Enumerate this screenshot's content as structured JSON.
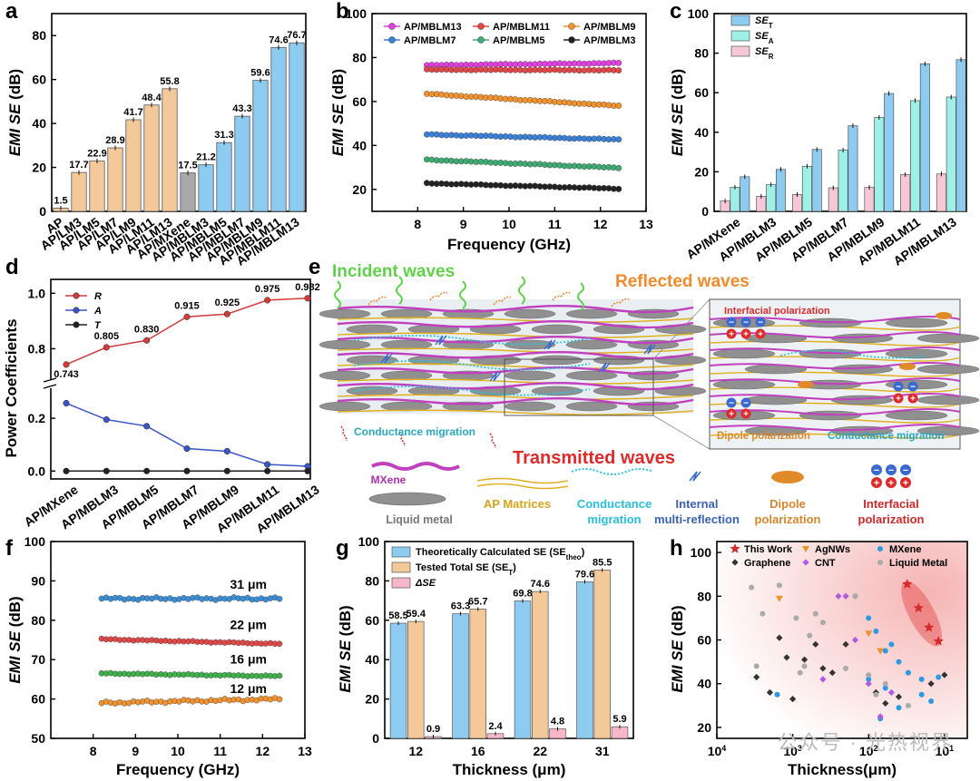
{
  "panels": {
    "a": {
      "letter": "a"
    },
    "b": {
      "letter": "b"
    },
    "c": {
      "letter": "c"
    },
    "d": {
      "letter": "d"
    },
    "e": {
      "letter": "e"
    },
    "f": {
      "letter": "f"
    },
    "g": {
      "letter": "g"
    },
    "h": {
      "letter": "h"
    }
  },
  "chart_data": [
    {
      "panel": "a",
      "type": "bar",
      "ylabel": "EMI SE (dB)",
      "ylim": [
        0,
        90
      ],
      "yticks": [
        0,
        20,
        40,
        60,
        80
      ],
      "categories": [
        "AP",
        "AP/LM3",
        "AP/LM5",
        "AP/LM7",
        "AP/LM9",
        "AP/LM11",
        "AP/LM13",
        "AP/MXene",
        "AP/MBLM3",
        "AP/MBLM5",
        "AP/MBLM7",
        "AP/MBLM9",
        "AP/MBLM11",
        "AP/MBLM13"
      ],
      "values": [
        1.5,
        17.7,
        22.9,
        28.9,
        41.7,
        48.4,
        55.8,
        17.5,
        21.2,
        31.3,
        43.3,
        59.6,
        74.6,
        76.7
      ],
      "value_labels": [
        "1.5",
        "17.7",
        "22.9",
        "28.9",
        "41.7",
        "48.4",
        "55.8",
        "17.5",
        "21.2",
        "31.3",
        "43.3",
        "59.6",
        "74.6",
        "76.7"
      ],
      "colors": {
        "lm": "#f3c99a",
        "mxene": "#a8a8a8",
        "mblm": "#8ecbf0"
      }
    },
    {
      "panel": "b",
      "type": "line",
      "xlabel": "Frequency (GHz)",
      "ylabel": "EMI SE (dB)",
      "xlim": [
        7,
        13
      ],
      "ylim": [
        10,
        100
      ],
      "xticks": [
        8,
        9,
        10,
        11,
        12,
        13
      ],
      "yticks": [
        20,
        40,
        60,
        80,
        100
      ],
      "x_range": [
        8.2,
        12.4
      ],
      "series": [
        {
          "name": "AP/MBLM13",
          "start": 76.5,
          "end": 77.5,
          "color": "#e040e0"
        },
        {
          "name": "AP/MBLM11",
          "start": 74.5,
          "end": 74.2,
          "color": "#e04848"
        },
        {
          "name": "AP/MBLM9",
          "start": 63.5,
          "end": 58.0,
          "color": "#f0922e"
        },
        {
          "name": "AP/MBLM7",
          "start": 45.0,
          "end": 42.7,
          "color": "#3b7fd6"
        },
        {
          "name": "AP/MBLM5",
          "start": 33.5,
          "end": 29.8,
          "color": "#3faa72"
        },
        {
          "name": "AP/MBLM3",
          "start": 22.8,
          "end": 20.3,
          "color": "#222222"
        }
      ]
    },
    {
      "panel": "c",
      "type": "bar",
      "ylabel": "EMI SE (dB)",
      "ylim": [
        0,
        100
      ],
      "yticks": [
        0,
        20,
        40,
        60,
        80,
        100
      ],
      "categories": [
        "AP/MXene",
        "AP/MBLM3",
        "AP/MBLM5",
        "AP/MBLM7",
        "AP/MBLM9",
        "AP/MBLM11",
        "AP/MBLM13"
      ],
      "series": [
        {
          "name": "SE",
          "sub": "T",
          "values": [
            17.5,
            21.2,
            31.3,
            43.3,
            59.6,
            74.6,
            76.7
          ],
          "color": "#8ecbf0"
        },
        {
          "name": "SE",
          "sub": "A",
          "values": [
            12.2,
            13.5,
            22.8,
            31.0,
            47.5,
            56.0,
            57.8
          ],
          "color": "#9ef0e6"
        },
        {
          "name": "SE",
          "sub": "R",
          "values": [
            5.2,
            7.6,
            8.5,
            11.9,
            12.1,
            18.6,
            18.9
          ],
          "color": "#f6c7d6"
        }
      ]
    },
    {
      "panel": "d",
      "type": "line",
      "ylabel": "Power Coefficients",
      "categories": [
        "AP/MXene",
        "AP/MBLM3",
        "AP/MBLM5",
        "AP/MBLM7",
        "AP/MBLM9",
        "AP/MBLM11",
        "AP/MBLM13"
      ],
      "upper_yticks": [
        "0.8",
        "1.0"
      ],
      "lower_yticks": [
        "0.0",
        "0.2"
      ],
      "series": [
        {
          "name": "R",
          "values": [
            0.743,
            0.805,
            0.83,
            0.915,
            0.925,
            0.975,
            0.982
          ],
          "color": "#d13b3b"
        },
        {
          "name": "A",
          "values": [
            0.257,
            0.195,
            0.17,
            0.085,
            0.075,
            0.025,
            0.018
          ],
          "color": "#3b55c9"
        },
        {
          "name": "T",
          "values": [
            0.0,
            0.0,
            0.0,
            0.0,
            0.0,
            0.0,
            0.0
          ],
          "color": "#222222"
        }
      ],
      "value_labels": [
        "0.743",
        "0.805",
        "0.830",
        "0.915",
        "0.925",
        "0.975",
        "0.982"
      ]
    },
    {
      "panel": "f",
      "type": "line",
      "xlabel": "Frequency (GHz)",
      "ylabel": "EMI SE (dB)",
      "xlim": [
        7,
        13
      ],
      "ylim": [
        50,
        100
      ],
      "xticks": [
        8,
        9,
        10,
        11,
        12,
        13
      ],
      "yticks": [
        50,
        60,
        70,
        80,
        90,
        100
      ],
      "x_range": [
        8.2,
        12.4
      ],
      "series": [
        {
          "label": "31 μm",
          "start": 85.5,
          "end": 85.5,
          "color": "#3b8ed6"
        },
        {
          "label": "22 μm",
          "start": 75.2,
          "end": 74.0,
          "color": "#e04848"
        },
        {
          "label": "16 μm",
          "start": 66.5,
          "end": 65.8,
          "color": "#3fb04a"
        },
        {
          "label": "12 μm",
          "start": 59.0,
          "end": 60.0,
          "color": "#f0922e"
        }
      ]
    },
    {
      "panel": "g",
      "type": "bar",
      "xlabel": "Thickness (μm)",
      "ylabel": "EMI SE (dB)",
      "ylim": [
        0,
        100
      ],
      "yticks": [
        0,
        20,
        40,
        60,
        80,
        100
      ],
      "categories": [
        "12",
        "16",
        "22",
        "31"
      ],
      "series": [
        {
          "name": "Theoretically Calculated SE (SE",
          "sub": "theo",
          "suffix": ")",
          "values": [
            58.5,
            63.3,
            69.8,
            79.6
          ],
          "labels": [
            "58.5",
            "63.3",
            "69.8",
            "79.6"
          ],
          "color": "#8ecbf0"
        },
        {
          "name": "Tested Total SE (SE",
          "sub": "T",
          "suffix": ")",
          "values": [
            59.4,
            65.7,
            74.6,
            85.5
          ],
          "labels": [
            "59.4",
            "65.7",
            "74.6",
            "85.5"
          ],
          "color": "#f3c99a"
        },
        {
          "name": "ΔSE",
          "sub": "",
          "suffix": "",
          "values": [
            0.9,
            2.4,
            4.8,
            5.9
          ],
          "labels": [
            "0.9",
            "2.4",
            "4.8",
            "5.9"
          ],
          "color": "#f6b8c8"
        }
      ]
    },
    {
      "panel": "h",
      "type": "scatter",
      "xlabel": "Thickness(μm)",
      "ylabel": "EMI SE (dB)",
      "x_scale": "log-reversed",
      "xlim": [
        10000,
        5
      ],
      "ylim": [
        15,
        105
      ],
      "yticks": [
        20,
        40,
        60,
        80,
        100
      ],
      "series": [
        {
          "name": "This Work",
          "marker": "star",
          "color": "#d42a2a",
          "points": [
            [
              12,
              59.4
            ],
            [
              16,
              65.7
            ],
            [
              22,
              74.6
            ],
            [
              31,
              85.5
            ]
          ]
        },
        {
          "name": "AgNWs",
          "marker": "triangle",
          "color": "#e8962a",
          "points": [
            [
              1500,
              79
            ],
            [
              100,
              63
            ],
            [
              70,
              55
            ]
          ]
        },
        {
          "name": "MXene",
          "marker": "circle",
          "color": "#2a9be0",
          "points": [
            [
              150,
              80
            ],
            [
              100,
              70
            ],
            [
              80,
              64
            ],
            [
              60,
              55
            ],
            [
              40,
              50
            ],
            [
              30,
              45
            ],
            [
              20,
              42
            ],
            [
              100,
              42
            ],
            [
              60,
              38
            ],
            [
              12,
              43
            ],
            [
              15,
              32
            ],
            [
              20,
              35
            ],
            [
              40,
              29
            ],
            [
              70,
              24
            ],
            [
              1600,
              35
            ],
            [
              50,
              58
            ]
          ]
        },
        {
          "name": "Graphene",
          "marker": "diamond",
          "color": "#333333",
          "points": [
            [
              3000,
              43
            ],
            [
              2000,
              36
            ],
            [
              1500,
              61
            ],
            [
              1200,
              52
            ],
            [
              1000,
              33
            ],
            [
              700,
              51
            ],
            [
              500,
              58
            ],
            [
              400,
              47
            ],
            [
              300,
              45
            ],
            [
              200,
              58
            ],
            [
              60,
              31
            ],
            [
              40,
              34
            ],
            [
              10,
              44
            ],
            [
              15,
              40
            ],
            [
              80,
              36
            ]
          ]
        },
        {
          "name": "CNT",
          "marker": "diamond",
          "color": "#b05ce0",
          "points": [
            [
              200,
              80
            ],
            [
              250,
              80
            ],
            [
              400,
              42
            ],
            [
              150,
              60
            ],
            [
              100,
              40
            ],
            [
              50,
              36
            ],
            [
              70,
              25
            ]
          ]
        },
        {
          "name": "Liquid Metal",
          "marker": "circle",
          "color": "#aaaaaa",
          "points": [
            [
              3500,
              84
            ],
            [
              2500,
              72
            ],
            [
              1500,
              85
            ],
            [
              900,
              70
            ],
            [
              700,
              48
            ],
            [
              600,
              62
            ],
            [
              500,
              72
            ],
            [
              400,
              68
            ],
            [
              200,
              47
            ],
            [
              150,
              80
            ],
            [
              100,
              44
            ],
            [
              80,
              35
            ],
            [
              60,
              40
            ],
            [
              30,
              30
            ],
            [
              3000,
              48
            ],
            [
              800,
              45
            ]
          ]
        }
      ]
    }
  ],
  "schematic": {
    "incident": "Incident waves",
    "reflected": "Reflected waves",
    "transmitted": "Transmitted waves",
    "conductance_migration_inline": "Conductance migration",
    "interfacial_polarization_inset": "Interfacial polarization",
    "dipole_polarization_inset": "Dipole polarization",
    "conductance_migration_inset": "Conductance migration",
    "legend": {
      "mxene": "MXene",
      "liquid_metal": "Liquid metal",
      "ap_matrices": "AP Matrices",
      "conductance_migration": [
        "Conductance",
        "migration"
      ],
      "internal_multi_reflection": [
        "Internal",
        "multi-reflection"
      ],
      "dipole_polarization": [
        "Dipole",
        "polarization"
      ],
      "interfacial_polarization": [
        "Interfacial",
        "polarization"
      ]
    },
    "colors": {
      "incident": "#5fd24a",
      "reflected": "#f08a2a",
      "transmitted": "#e02a2a",
      "conductance": "#2ac4e0",
      "multi": "#3a6ad0",
      "dipole": "#e08a2a",
      "interfacial": "#e02a2a",
      "mxene": "#c040c0",
      "lm": "#909090",
      "ap": "#e0b020"
    }
  },
  "watermark": "公众号 · 光热视界"
}
